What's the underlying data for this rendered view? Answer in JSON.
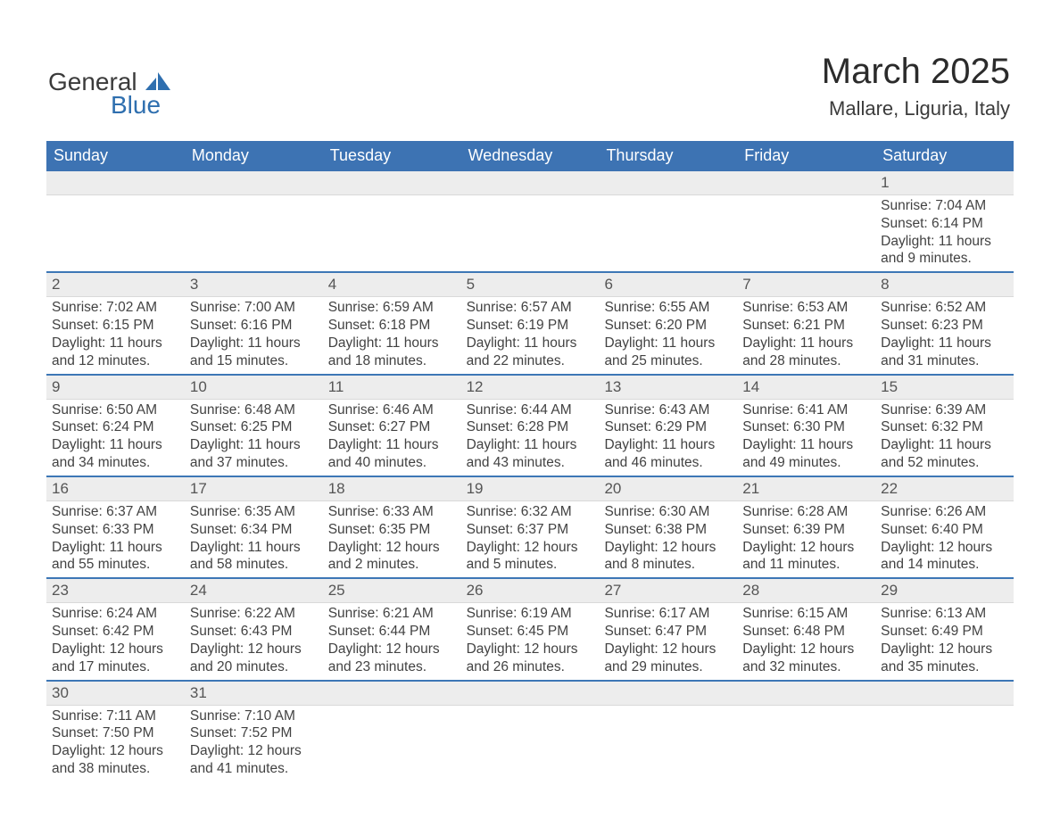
{
  "brand": {
    "name_top": "General",
    "name_bottom": "Blue",
    "brand_color": "#2f6faf"
  },
  "header": {
    "month_title": "March 2025",
    "location": "Mallare, Liguria, Italy"
  },
  "colors": {
    "header_row_bg": "#3d73b3",
    "header_row_text": "#ffffff",
    "daynum_bar_bg": "#ededed",
    "week_divider": "#3d77b6",
    "body_text": "#424242",
    "page_bg": "#ffffff"
  },
  "weekdays": [
    "Sunday",
    "Monday",
    "Tuesday",
    "Wednesday",
    "Thursday",
    "Friday",
    "Saturday"
  ],
  "labels": {
    "sunrise": "Sunrise:",
    "sunset": "Sunset:",
    "daylight": "Daylight:"
  },
  "weeks": [
    [
      null,
      null,
      null,
      null,
      null,
      null,
      {
        "n": "1",
        "sunrise": "7:04 AM",
        "sunset": "6:14 PM",
        "daylight": "11 hours and 9 minutes."
      }
    ],
    [
      {
        "n": "2",
        "sunrise": "7:02 AM",
        "sunset": "6:15 PM",
        "daylight": "11 hours and 12 minutes."
      },
      {
        "n": "3",
        "sunrise": "7:00 AM",
        "sunset": "6:16 PM",
        "daylight": "11 hours and 15 minutes."
      },
      {
        "n": "4",
        "sunrise": "6:59 AM",
        "sunset": "6:18 PM",
        "daylight": "11 hours and 18 minutes."
      },
      {
        "n": "5",
        "sunrise": "6:57 AM",
        "sunset": "6:19 PM",
        "daylight": "11 hours and 22 minutes."
      },
      {
        "n": "6",
        "sunrise": "6:55 AM",
        "sunset": "6:20 PM",
        "daylight": "11 hours and 25 minutes."
      },
      {
        "n": "7",
        "sunrise": "6:53 AM",
        "sunset": "6:21 PM",
        "daylight": "11 hours and 28 minutes."
      },
      {
        "n": "8",
        "sunrise": "6:52 AM",
        "sunset": "6:23 PM",
        "daylight": "11 hours and 31 minutes."
      }
    ],
    [
      {
        "n": "9",
        "sunrise": "6:50 AM",
        "sunset": "6:24 PM",
        "daylight": "11 hours and 34 minutes."
      },
      {
        "n": "10",
        "sunrise": "6:48 AM",
        "sunset": "6:25 PM",
        "daylight": "11 hours and 37 minutes."
      },
      {
        "n": "11",
        "sunrise": "6:46 AM",
        "sunset": "6:27 PM",
        "daylight": "11 hours and 40 minutes."
      },
      {
        "n": "12",
        "sunrise": "6:44 AM",
        "sunset": "6:28 PM",
        "daylight": "11 hours and 43 minutes."
      },
      {
        "n": "13",
        "sunrise": "6:43 AM",
        "sunset": "6:29 PM",
        "daylight": "11 hours and 46 minutes."
      },
      {
        "n": "14",
        "sunrise": "6:41 AM",
        "sunset": "6:30 PM",
        "daylight": "11 hours and 49 minutes."
      },
      {
        "n": "15",
        "sunrise": "6:39 AM",
        "sunset": "6:32 PM",
        "daylight": "11 hours and 52 minutes."
      }
    ],
    [
      {
        "n": "16",
        "sunrise": "6:37 AM",
        "sunset": "6:33 PM",
        "daylight": "11 hours and 55 minutes."
      },
      {
        "n": "17",
        "sunrise": "6:35 AM",
        "sunset": "6:34 PM",
        "daylight": "11 hours and 58 minutes."
      },
      {
        "n": "18",
        "sunrise": "6:33 AM",
        "sunset": "6:35 PM",
        "daylight": "12 hours and 2 minutes."
      },
      {
        "n": "19",
        "sunrise": "6:32 AM",
        "sunset": "6:37 PM",
        "daylight": "12 hours and 5 minutes."
      },
      {
        "n": "20",
        "sunrise": "6:30 AM",
        "sunset": "6:38 PM",
        "daylight": "12 hours and 8 minutes."
      },
      {
        "n": "21",
        "sunrise": "6:28 AM",
        "sunset": "6:39 PM",
        "daylight": "12 hours and 11 minutes."
      },
      {
        "n": "22",
        "sunrise": "6:26 AM",
        "sunset": "6:40 PM",
        "daylight": "12 hours and 14 minutes."
      }
    ],
    [
      {
        "n": "23",
        "sunrise": "6:24 AM",
        "sunset": "6:42 PM",
        "daylight": "12 hours and 17 minutes."
      },
      {
        "n": "24",
        "sunrise": "6:22 AM",
        "sunset": "6:43 PM",
        "daylight": "12 hours and 20 minutes."
      },
      {
        "n": "25",
        "sunrise": "6:21 AM",
        "sunset": "6:44 PM",
        "daylight": "12 hours and 23 minutes."
      },
      {
        "n": "26",
        "sunrise": "6:19 AM",
        "sunset": "6:45 PM",
        "daylight": "12 hours and 26 minutes."
      },
      {
        "n": "27",
        "sunrise": "6:17 AM",
        "sunset": "6:47 PM",
        "daylight": "12 hours and 29 minutes."
      },
      {
        "n": "28",
        "sunrise": "6:15 AM",
        "sunset": "6:48 PM",
        "daylight": "12 hours and 32 minutes."
      },
      {
        "n": "29",
        "sunrise": "6:13 AM",
        "sunset": "6:49 PM",
        "daylight": "12 hours and 35 minutes."
      }
    ],
    [
      {
        "n": "30",
        "sunrise": "7:11 AM",
        "sunset": "7:50 PM",
        "daylight": "12 hours and 38 minutes."
      },
      {
        "n": "31",
        "sunrise": "7:10 AM",
        "sunset": "7:52 PM",
        "daylight": "12 hours and 41 minutes."
      },
      null,
      null,
      null,
      null,
      null
    ]
  ]
}
